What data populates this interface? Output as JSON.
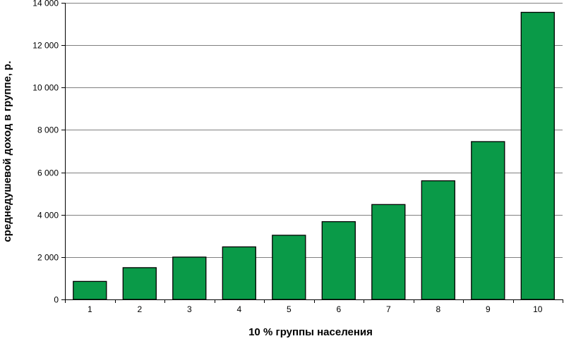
{
  "chart_data": {
    "type": "bar",
    "categories": [
      "1",
      "2",
      "3",
      "4",
      "5",
      "6",
      "7",
      "8",
      "9",
      "10"
    ],
    "values": [
      850,
      1500,
      2000,
      2480,
      3030,
      3670,
      4480,
      5600,
      7450,
      13550
    ],
    "xlabel": "10 %  группы населения",
    "ylabel": "среднедушевой доход в группе, р.",
    "ylim": [
      0,
      14000
    ],
    "yticks": [
      0,
      2000,
      4000,
      6000,
      8000,
      10000,
      12000,
      14000
    ],
    "ytick_labels": [
      "0",
      "2 000",
      "4 000",
      "6 000",
      "8 000",
      "10 000",
      "12 000",
      "14 000"
    ],
    "grid": true,
    "legend": false,
    "colors": {
      "bar_fill": "#0a9a48",
      "bar_stroke": "#000000",
      "grid": "#808080"
    }
  }
}
